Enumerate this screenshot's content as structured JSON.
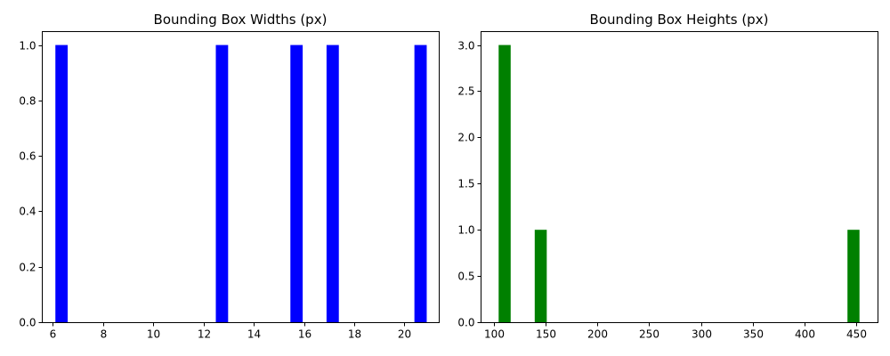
{
  "chart_data": [
    {
      "type": "bar",
      "title": "Bounding Box Widths (px)",
      "xlabel": "",
      "ylabel": "",
      "color": "#0000ff",
      "bin_width": 0.49,
      "bins": [
        {
          "x_start": 6.1,
          "x_end": 6.59,
          "count": 1
        },
        {
          "x_start": 12.49,
          "x_end": 12.98,
          "count": 1
        },
        {
          "x_start": 15.46,
          "x_end": 15.95,
          "count": 1
        },
        {
          "x_start": 16.9,
          "x_end": 17.39,
          "count": 1
        },
        {
          "x_start": 20.4,
          "x_end": 20.89,
          "count": 1
        }
      ],
      "xlim": [
        5.56,
        21.37
      ],
      "ylim": [
        0,
        1.05
      ],
      "xticks": [
        6,
        8,
        10,
        12,
        14,
        16,
        18,
        20
      ],
      "xtick_labels": [
        "6",
        "8",
        "10",
        "12",
        "14",
        "16",
        "18",
        "20"
      ],
      "yticks": [
        0,
        0.2,
        0.4,
        0.6,
        0.8,
        1.0
      ],
      "ytick_labels": [
        "0.0",
        "0.2",
        "0.4",
        "0.6",
        "0.8",
        "1.0"
      ],
      "grid": false,
      "legend": "none"
    },
    {
      "type": "bar",
      "title": "Bounding Box Heights (px)",
      "xlabel": "",
      "ylabel": "",
      "color": "#008000",
      "bin_width": 11.6,
      "bins": [
        {
          "x_start": 104.8,
          "x_end": 116.4,
          "count": 3
        },
        {
          "x_start": 139.6,
          "x_end": 151.2,
          "count": 1
        },
        {
          "x_start": 441.2,
          "x_end": 452.8,
          "count": 1
        }
      ],
      "xlim": [
        87.4,
        470.2
      ],
      "ylim": [
        0,
        3.15
      ],
      "xticks": [
        100,
        150,
        200,
        250,
        300,
        350,
        400,
        450
      ],
      "xtick_labels": [
        "100",
        "150",
        "200",
        "250",
        "300",
        "350",
        "400",
        "450"
      ],
      "yticks": [
        0,
        0.5,
        1.0,
        1.5,
        2.0,
        2.5,
        3.0
      ],
      "ytick_labels": [
        "0.0",
        "0.5",
        "1.0",
        "1.5",
        "2.0",
        "2.5",
        "3.0"
      ],
      "grid": false,
      "legend": "none"
    }
  ]
}
